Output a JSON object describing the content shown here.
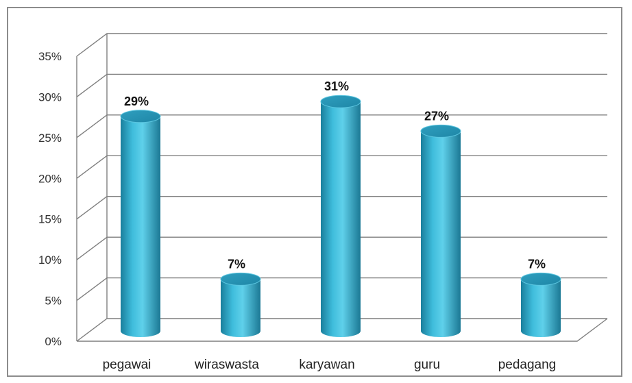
{
  "chart_data": {
    "type": "bar",
    "categories": [
      "pegawai",
      "wiraswasta",
      "karyawan",
      "guru",
      "pedagang"
    ],
    "values": [
      29,
      7,
      31,
      27,
      7
    ],
    "data_labels": [
      "29%",
      "7%",
      "31%",
      "27%",
      "7%"
    ],
    "yticks": [
      "0%",
      "5%",
      "10%",
      "15%",
      "20%",
      "25%",
      "30%",
      "35%"
    ],
    "ylim": [
      0,
      35
    ],
    "grid": true,
    "bar_color": "#2fa7c6",
    "title": "",
    "xlabel": "",
    "ylabel": ""
  }
}
